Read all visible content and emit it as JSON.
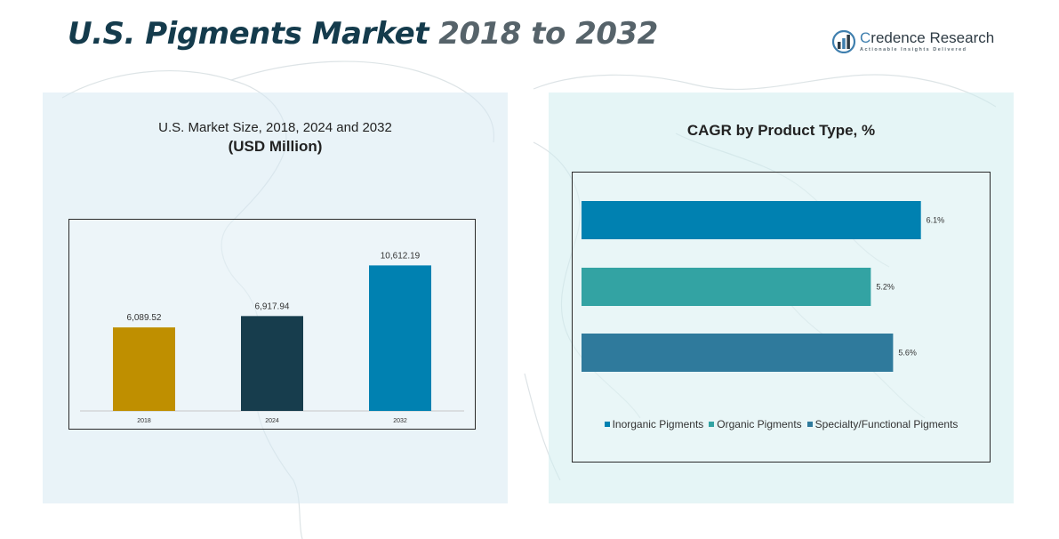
{
  "header": {
    "title_part1": "U.S. Pigments Market",
    "title_part2": " 2018 to 2032",
    "logo_name_first": "C",
    "logo_name_rest": "redence Research",
    "logo_tagline": "Actionable Insights Delivered"
  },
  "left_panel": {
    "title": "U.S. Market Size, 2018, 2024 and 2032",
    "subtitle": "(USD Million)"
  },
  "right_panel": {
    "title": "CAGR by Product Type, %"
  },
  "colors": {
    "bar_2018": "#bf8f00",
    "bar_2024": "#173d4d",
    "bar_2032": "#0081b1",
    "inorganic": "#0081b1",
    "organic": "#33a3a3",
    "specialty": "#2f7a9c"
  },
  "chart_data": [
    {
      "type": "bar",
      "orientation": "vertical",
      "categories": [
        "2018",
        "2024",
        "2032"
      ],
      "values": [
        6089.52,
        6917.94,
        10612.19
      ],
      "value_labels": [
        "6,089.52",
        "6,917.94",
        "10,612.19"
      ],
      "ylim": [
        0,
        12000
      ],
      "grid": false,
      "legend": "none"
    },
    {
      "type": "bar",
      "orientation": "horizontal",
      "series": [
        {
          "name": "Inorganic Pigments",
          "value": 6.1,
          "label": "6.1%"
        },
        {
          "name": "Organic Pigments",
          "value": 5.2,
          "label": "5.2%"
        },
        {
          "name": "Specialty/Functional Pigments",
          "value": 5.6,
          "label": "5.6%"
        }
      ],
      "xlim": [
        0,
        7
      ],
      "grid": false,
      "legend": "bottom"
    }
  ]
}
